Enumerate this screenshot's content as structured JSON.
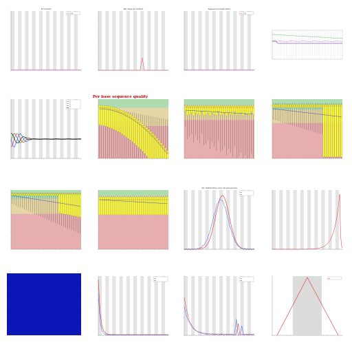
{
  "chart_data": [
    {
      "id": "p1",
      "type": "line",
      "title": "N content",
      "legend": [
        "% N"
      ],
      "colors": {
        "line": "#d050d0"
      }
    },
    {
      "id": "p2",
      "type": "line",
      "title": "Per base N content",
      "legend": [],
      "colors": {
        "line": "#e03030"
      }
    },
    {
      "id": "p3",
      "type": "line",
      "title": "Sequence Duplication",
      "legend": [
        "% N"
      ],
      "colors": {
        "line": "#d050d0"
      }
    },
    {
      "id": "p4",
      "type": "line",
      "title": "",
      "legend": [],
      "series": [
        {
          "name": "",
          "color": "#5fc75f"
        },
        {
          "name": "",
          "color": "#d050d0"
        },
        {
          "name": "",
          "color": "#e03030"
        },
        {
          "name": "",
          "color": "#3060e0"
        }
      ]
    },
    {
      "id": "p5",
      "type": "line",
      "title": "",
      "legend": [
        "A",
        "C",
        "G",
        "T"
      ],
      "series": [
        {
          "name": "A",
          "color": "#1060ff"
        },
        {
          "name": "C",
          "color": "#e03030"
        },
        {
          "name": "G",
          "color": "#2a8a2a"
        },
        {
          "name": "T",
          "color": "#000000"
        }
      ]
    },
    {
      "id": "p6",
      "type": "boxplot",
      "title": "Per base sequence quality",
      "bands": [
        "#aedcae",
        "#e6d6a6",
        "#e6aeae"
      ]
    },
    {
      "id": "p7",
      "type": "boxplot",
      "title": "",
      "bands": [
        "#aedcae",
        "#e6d6a6",
        "#e6aeae"
      ]
    },
    {
      "id": "p8",
      "type": "boxplot",
      "title": "",
      "bands": [
        "#aedcae",
        "#e6d6a6",
        "#e6aeae"
      ]
    },
    {
      "id": "p9",
      "type": "boxplot",
      "title": "",
      "bands": [
        "#aedcae",
        "#e6d6a6",
        "#e6aeae"
      ]
    },
    {
      "id": "p10",
      "type": "boxplot",
      "title": "",
      "bands": [
        "#aedcae",
        "#e6d6a6",
        "#e6aeae"
      ]
    },
    {
      "id": "p11",
      "type": "line",
      "title": "GC distribution over all sequences",
      "legend": [
        "",
        ""
      ],
      "series": [
        {
          "name": "",
          "color": "#e03030"
        },
        {
          "name": "",
          "color": "#3060e0"
        }
      ]
    },
    {
      "id": "p12",
      "type": "line",
      "title": "",
      "legend": [],
      "series": [
        {
          "name": "",
          "color": "#e03030"
        }
      ]
    },
    {
      "id": "p13",
      "type": "heatmap",
      "title": "",
      "colors": {
        "fill": "#0a16b8"
      }
    },
    {
      "id": "p14",
      "type": "line",
      "title": "",
      "legend": [
        "",
        ""
      ],
      "series": [
        {
          "name": "",
          "color": "#e03030"
        },
        {
          "name": "",
          "color": "#3060e0"
        }
      ]
    },
    {
      "id": "p15",
      "type": "line",
      "title": "",
      "legend": [
        "",
        ""
      ],
      "series": [
        {
          "name": "",
          "color": "#e03030"
        },
        {
          "name": "",
          "color": "#3060e0"
        }
      ]
    },
    {
      "id": "p16",
      "type": "line",
      "title": "",
      "legend": [],
      "series": [
        {
          "name": "",
          "color": "#e03030"
        }
      ]
    }
  ]
}
